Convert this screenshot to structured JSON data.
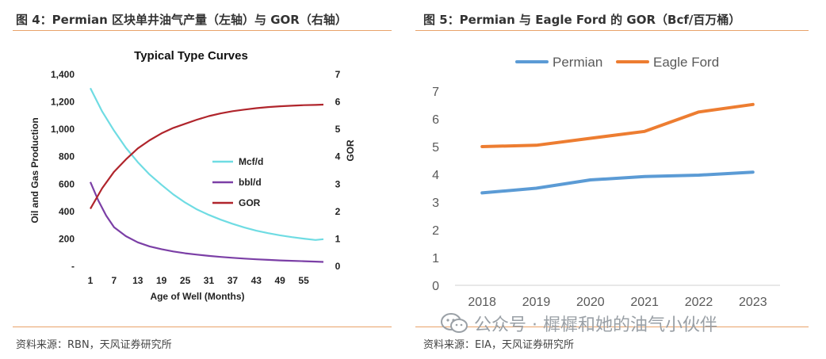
{
  "figures": {
    "left": {
      "title": "图 4：Permian 区块单井油气产量（左轴）与 GOR（右轴）",
      "source": "资料来源：RBN，天风证券研究所"
    },
    "right": {
      "title": "图 5：Permian 与 Eagle Ford 的 GOR（Bcf/百万桶）",
      "source": "资料来源：EIA，天风证券研究所"
    }
  },
  "watermark": {
    "text": "公众号 · 樨樨和她的油气小伙伴",
    "icon": "wechat-icon"
  },
  "chart_data": [
    {
      "type": "line",
      "title": "Typical Type Curves",
      "xlabel": "Age of Well (Months)",
      "ylabel": "Oil and Gas Production",
      "y2label": "GOR",
      "xlim": [
        1,
        60
      ],
      "ylim": [
        0,
        1400
      ],
      "y2lim": [
        0,
        7
      ],
      "x_ticks": [
        "1",
        "7",
        "13",
        "19",
        "25",
        "31",
        "37",
        "43",
        "49",
        "55"
      ],
      "y_ticks": [
        "-",
        "200",
        "400",
        "600",
        "800",
        "1,000",
        "1,200",
        "1,400"
      ],
      "y2_ticks": [
        "0",
        "1",
        "2",
        "3",
        "4",
        "5",
        "6",
        "7"
      ],
      "legend_position": "middle-right",
      "series": [
        {
          "name": "Mcf/d",
          "axis": "left",
          "color": "#6fdce3",
          "x": [
            1,
            4,
            7,
            10,
            13,
            16,
            19,
            22,
            25,
            28,
            31,
            34,
            37,
            40,
            43,
            46,
            49,
            52,
            55,
            58,
            60
          ],
          "values": [
            1300,
            1130,
            990,
            865,
            760,
            670,
            595,
            525,
            465,
            415,
            375,
            340,
            310,
            283,
            260,
            242,
            226,
            213,
            202,
            192,
            198
          ]
        },
        {
          "name": "bbl/d",
          "axis": "left",
          "color": "#7b3fa6",
          "x": [
            1,
            3,
            5,
            7,
            10,
            13,
            16,
            19,
            22,
            25,
            28,
            31,
            34,
            37,
            40,
            43,
            46,
            49,
            52,
            55,
            58,
            60
          ],
          "values": [
            615,
            480,
            370,
            285,
            220,
            175,
            145,
            125,
            108,
            95,
            85,
            76,
            68,
            62,
            56,
            51,
            47,
            43,
            40,
            37,
            34,
            32
          ]
        },
        {
          "name": "GOR",
          "axis": "right",
          "color": "#b0252c",
          "x": [
            1,
            4,
            7,
            10,
            13,
            16,
            19,
            22,
            25,
            28,
            31,
            34,
            37,
            40,
            43,
            46,
            49,
            52,
            55,
            58,
            60
          ],
          "values": [
            2.1,
            2.85,
            3.45,
            3.9,
            4.3,
            4.6,
            4.85,
            5.05,
            5.2,
            5.35,
            5.48,
            5.58,
            5.66,
            5.72,
            5.77,
            5.81,
            5.84,
            5.86,
            5.88,
            5.89,
            5.9
          ]
        }
      ]
    },
    {
      "type": "line",
      "title": "",
      "categories": [
        "2018",
        "2019",
        "2020",
        "2021",
        "2022",
        "2023"
      ],
      "ylim": [
        0,
        7
      ],
      "y_ticks": [
        "0",
        "1",
        "2",
        "3",
        "4",
        "5",
        "6",
        "7"
      ],
      "legend_position": "top",
      "series": [
        {
          "name": "Permian",
          "color": "#5b9bd5",
          "values": [
            3.33,
            3.5,
            3.8,
            3.92,
            3.97,
            4.08
          ]
        },
        {
          "name": "Eagle Ford",
          "color": "#ed7d31",
          "values": [
            5.0,
            5.05,
            5.3,
            5.55,
            6.25,
            6.52
          ]
        }
      ]
    }
  ]
}
